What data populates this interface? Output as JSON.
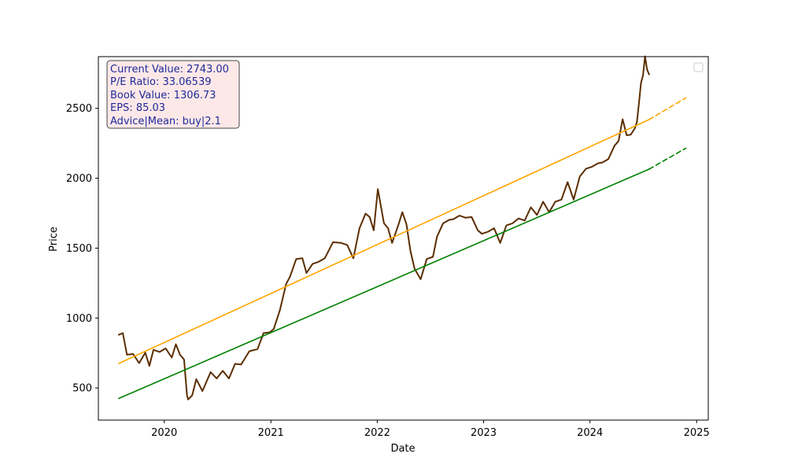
{
  "chart_data": {
    "type": "line",
    "title": "",
    "xlabel": "Date",
    "ylabel": "Price",
    "xlim": [
      "2019-05-20",
      "2025-02-10"
    ],
    "ylim": [
      270,
      2870
    ],
    "x_ticks": [
      "2020",
      "2021",
      "2022",
      "2023",
      "2024",
      "2025"
    ],
    "y_ticks": [
      500,
      1000,
      1500,
      2000,
      2500
    ],
    "grid": false,
    "legend": "top-right (empty)",
    "series": [
      {
        "kind": "price",
        "color": "#5c2e00",
        "style": "solid",
        "points": [
          [
            "2019-07-29",
            880
          ],
          [
            "2019-08-12",
            870
          ],
          [
            "2019-08-26",
            760
          ],
          [
            "2019-09-16",
            720
          ],
          [
            "2019-10-07",
            700
          ],
          [
            "2019-10-28",
            730
          ],
          [
            "2019-11-11",
            680
          ],
          [
            "2019-11-25",
            750
          ],
          [
            "2019-12-16",
            780
          ],
          [
            "2020-01-06",
            760
          ],
          [
            "2020-01-27",
            740
          ],
          [
            "2020-02-10",
            790
          ],
          [
            "2020-02-24",
            760
          ],
          [
            "2020-03-09",
            680
          ],
          [
            "2020-03-19",
            470
          ],
          [
            "2020-03-23",
            395
          ],
          [
            "2020-04-06",
            470
          ],
          [
            "2020-04-20",
            540
          ],
          [
            "2020-05-11",
            500
          ],
          [
            "2020-06-08",
            590
          ],
          [
            "2020-06-29",
            590
          ],
          [
            "2020-07-20",
            600
          ],
          [
            "2020-08-10",
            590
          ],
          [
            "2020-08-31",
            650
          ],
          [
            "2020-09-21",
            690
          ],
          [
            "2020-10-19",
            740
          ],
          [
            "2020-11-16",
            800
          ],
          [
            "2020-12-07",
            870
          ],
          [
            "2020-12-28",
            920
          ],
          [
            "2021-01-11",
            900
          ],
          [
            "2021-02-01",
            1080
          ],
          [
            "2021-02-22",
            1220
          ],
          [
            "2021-03-08",
            1320
          ],
          [
            "2021-03-29",
            1400
          ],
          [
            "2021-04-19",
            1450
          ],
          [
            "2021-05-03",
            1300
          ],
          [
            "2021-05-24",
            1410
          ],
          [
            "2021-06-14",
            1380
          ],
          [
            "2021-07-05",
            1450
          ],
          [
            "2021-08-02",
            1520
          ],
          [
            "2021-08-30",
            1560
          ],
          [
            "2021-09-20",
            1500
          ],
          [
            "2021-10-11",
            1450
          ],
          [
            "2021-11-01",
            1620
          ],
          [
            "2021-11-22",
            1770
          ],
          [
            "2021-12-06",
            1700
          ],
          [
            "2021-12-20",
            1650
          ],
          [
            "2022-01-03",
            1900
          ],
          [
            "2022-01-24",
            1700
          ],
          [
            "2022-02-07",
            1620
          ],
          [
            "2022-02-21",
            1560
          ],
          [
            "2022-03-14",
            1640
          ],
          [
            "2022-03-28",
            1780
          ],
          [
            "2022-04-11",
            1650
          ],
          [
            "2022-04-25",
            1500
          ],
          [
            "2022-05-09",
            1330
          ],
          [
            "2022-05-30",
            1300
          ],
          [
            "2022-06-20",
            1400
          ],
          [
            "2022-07-11",
            1460
          ],
          [
            "2022-07-25",
            1560
          ],
          [
            "2022-08-15",
            1700
          ],
          [
            "2022-09-05",
            1680
          ],
          [
            "2022-09-19",
            1730
          ],
          [
            "2022-10-10",
            1710
          ],
          [
            "2022-10-31",
            1740
          ],
          [
            "2022-11-21",
            1700
          ],
          [
            "2022-12-12",
            1650
          ],
          [
            "2022-12-26",
            1580
          ],
          [
            "2023-01-16",
            1640
          ],
          [
            "2023-02-06",
            1620
          ],
          [
            "2023-02-27",
            1560
          ],
          [
            "2023-03-20",
            1640
          ],
          [
            "2023-04-10",
            1700
          ],
          [
            "2023-05-01",
            1690
          ],
          [
            "2023-05-22",
            1720
          ],
          [
            "2023-06-12",
            1770
          ],
          [
            "2023-07-03",
            1760
          ],
          [
            "2023-07-24",
            1810
          ],
          [
            "2023-08-14",
            1780
          ],
          [
            "2023-09-04",
            1810
          ],
          [
            "2023-09-25",
            1870
          ],
          [
            "2023-10-16",
            1950
          ],
          [
            "2023-11-06",
            1870
          ],
          [
            "2023-11-27",
            1990
          ],
          [
            "2023-12-18",
            2090
          ],
          [
            "2024-01-08",
            2060
          ],
          [
            "2024-01-29",
            2130
          ],
          [
            "2024-02-12",
            2090
          ],
          [
            "2024-03-04",
            2160
          ],
          [
            "2024-03-25",
            2210
          ],
          [
            "2024-04-08",
            2290
          ],
          [
            "2024-04-22",
            2400
          ],
          [
            "2024-05-06",
            2330
          ],
          [
            "2024-05-20",
            2290
          ],
          [
            "2024-06-03",
            2380
          ],
          [
            "2024-06-10",
            2380
          ],
          [
            "2024-06-17",
            2560
          ],
          [
            "2024-06-24",
            2660
          ],
          [
            "2024-07-01",
            2760
          ],
          [
            "2024-07-08",
            2850
          ],
          [
            "2024-07-15",
            2800
          ],
          [
            "2024-07-22",
            2743
          ]
        ]
      },
      {
        "kind": "upper-trend",
        "color": "#ffa500",
        "style": "solid",
        "points": [
          [
            "2019-07-29",
            675
          ],
          [
            "2024-07-22",
            2420
          ]
        ]
      },
      {
        "kind": "upper-trend-projection",
        "color": "#ffa500",
        "style": "dashed",
        "points": [
          [
            "2024-07-22",
            2420
          ],
          [
            "2024-11-25",
            2575
          ]
        ]
      },
      {
        "kind": "lower-trend",
        "color": "#008000",
        "style": "solid",
        "points": [
          [
            "2019-07-29",
            425
          ],
          [
            "2024-07-22",
            2065
          ]
        ]
      },
      {
        "kind": "lower-trend-projection",
        "color": "#008000",
        "style": "dashed",
        "points": [
          [
            "2024-07-22",
            2065
          ],
          [
            "2024-11-25",
            2215
          ]
        ]
      }
    ],
    "info_box": {
      "lines": [
        "Current Value: 2743.00",
        "P/E Ratio: 33.06539",
        "Book Value: 1306.73",
        "EPS: 85.03",
        "Advice|Mean: buy|2.1"
      ],
      "text_color": "#1f2a9a",
      "background": "#fde8e8",
      "border": "#444444"
    }
  }
}
